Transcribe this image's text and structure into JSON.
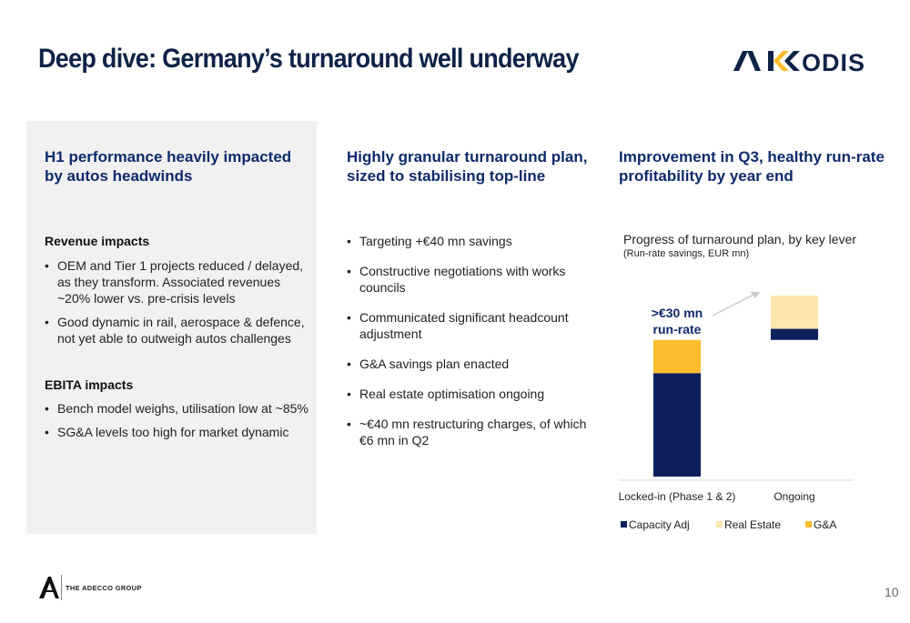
{
  "slide": {
    "title": "Deep dive: Germany’s turnaround well underway",
    "logo_text": "AKKODIS",
    "footer": "THE ADECCO GROUP",
    "page_number": "10"
  },
  "col1": {
    "heading": [
      "H1 performance heavily impacted",
      "by autos headwinds"
    ],
    "revenue": {
      "title": "Revenue impacts",
      "bullets": [
        [
          "OEM and Tier 1 projects reduced / delayed,",
          "as they transform. Associated revenues",
          "~20% lower vs. pre-crisis levels"
        ],
        [
          "Good dynamic in rail, aerospace & defence,",
          "not yet able to outweigh autos challenges"
        ]
      ]
    },
    "ebita": {
      "title": "EBITA impacts",
      "bullets": [
        [
          "Bench model weighs, utilisation low at ~85%"
        ],
        [
          "SG&A levels too high for market dynamic"
        ]
      ]
    }
  },
  "col2": {
    "heading": [
      "Highly granular turnaround plan,",
      "sized to stabilising top-line"
    ],
    "bullets": [
      [
        "Targeting +€40 mn savings"
      ],
      [
        "Constructive negotiations with works",
        "councils"
      ],
      [
        "Communicated significant headcount",
        "adjustment"
      ],
      [
        "G&A savings plan enacted"
      ],
      [
        "Real estate optimisation ongoing"
      ],
      [
        "~€40 mn restructuring charges, of which",
        "€6 mn in Q2"
      ]
    ]
  },
  "col3": {
    "heading": [
      "Improvement in Q3, healthy run-rate",
      "profitability by year end"
    ],
    "chart_title": "Progress of turnaround plan, by key lever",
    "chart_subtitle": "(Run-rate savings, EUR mn)"
  },
  "colors": {
    "capacity_adj": "#0d1f5c",
    "real_estate": "#fde6b0",
    "ga": "#fbbd2e",
    "title": "#0f2347",
    "heading": "#0f2a6b",
    "panel": "#f1f1f1"
  },
  "chart_data": {
    "type": "bar",
    "stacked": true,
    "title": "Progress of turnaround plan, by key lever",
    "subtitle": "(Run-rate savings, EUR mn)",
    "categories": [
      "Locked-in (Phase 1 & 2)",
      "Ongoing"
    ],
    "series": [
      {
        "name": "Capacity Adj",
        "color": "#0d1f5c",
        "values": [
          28,
          3
        ]
      },
      {
        "name": "Real Estate",
        "color": "#fde6b0",
        "values": [
          0,
          9
        ]
      },
      {
        "name": "G&A",
        "color": "#fbbd2e",
        "values": [
          9,
          0
        ]
      }
    ],
    "bases": [
      0,
      37
    ],
    "annotation": ">€30 mn run-rate",
    "annotation_lines": [
      ">€30 mn",
      "run-rate"
    ],
    "legend_position": "bottom",
    "ylim": [
      0,
      49
    ]
  }
}
